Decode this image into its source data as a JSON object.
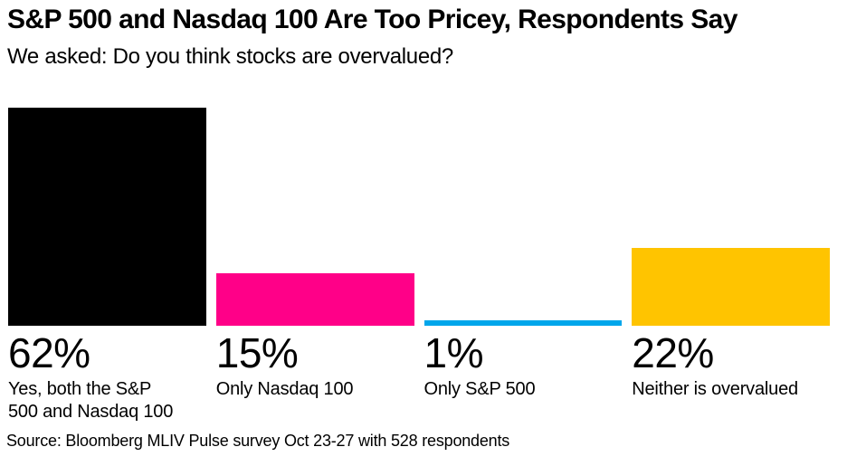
{
  "header": {
    "title": "S&P 500 and Nasdaq 100 Are Too Pricey, Respondents Say",
    "subtitle": "We asked: Do you think stocks are overvalued?"
  },
  "chart_data": {
    "type": "bar",
    "title": "S&P 500 and Nasdaq 100 Are Too Pricey, Respondents Say",
    "subtitle": "We asked: Do you think stocks are overvalued?",
    "categories": [
      "Yes, both the S&P 500 and Nasdaq 100",
      "Only Nasdaq 100",
      "Only S&P 500",
      "Neither is overvalued"
    ],
    "values": [
      62,
      15,
      1,
      22
    ],
    "value_labels": [
      "62%",
      "15%",
      "1%",
      "22%"
    ],
    "unit": "%",
    "colors": [
      "#000000",
      "#FF0088",
      "#00A6EB",
      "#FFC400"
    ],
    "ylim": [
      0,
      62
    ],
    "grid": false,
    "legend": "none",
    "xlabel": "",
    "ylabel": ""
  },
  "footer": {
    "source": "Source: Bloomberg MLIV Pulse survey Oct 23-27 with 528 respondents"
  }
}
